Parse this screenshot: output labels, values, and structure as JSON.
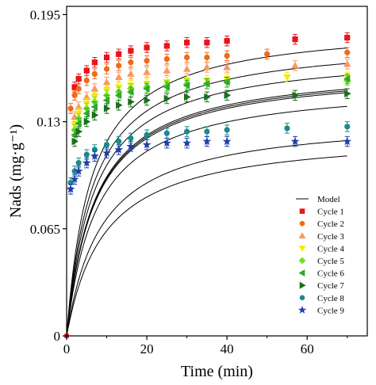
{
  "chart_data": {
    "type": "scatter",
    "xlabel": "Time (min)",
    "ylabel": "Nads (mg·g⁻¹)",
    "xlim": [
      0,
      75
    ],
    "ylim": [
      0,
      0.2
    ],
    "x_ticks": [
      0,
      20,
      40,
      60
    ],
    "y_ticks": [
      {
        "value": 0,
        "label": "0"
      },
      {
        "value": 0.065,
        "label": "0.065"
      },
      {
        "value": 0.13,
        "label": "0.13"
      },
      {
        "value": 0.195,
        "label": "0.195"
      }
    ],
    "grid": false,
    "legend_position": "bottom-right",
    "model_label": "Model",
    "model_color": "#000000",
    "series": [
      {
        "name": "Cycle 1",
        "color": "#e8141c",
        "marker": "square",
        "points": [
          [
            2,
            0.151
          ],
          [
            3,
            0.156
          ],
          [
            5,
            0.161
          ],
          [
            7,
            0.166
          ],
          [
            10,
            0.169
          ],
          [
            13,
            0.171
          ],
          [
            16,
            0.173
          ],
          [
            20,
            0.175
          ],
          [
            25,
            0.176
          ],
          [
            30,
            0.178
          ],
          [
            35,
            0.178
          ],
          [
            40,
            0.179
          ],
          [
            57,
            0.18
          ],
          [
            70,
            0.181
          ]
        ]
      },
      {
        "name": "Cycle 2",
        "color": "#f06a1a",
        "marker": "circle",
        "points": [
          [
            1,
            0.138
          ],
          [
            2,
            0.146
          ],
          [
            3,
            0.15
          ],
          [
            5,
            0.155
          ],
          [
            7,
            0.159
          ],
          [
            10,
            0.162
          ],
          [
            13,
            0.164
          ],
          [
            16,
            0.166
          ],
          [
            20,
            0.167
          ],
          [
            25,
            0.168
          ],
          [
            30,
            0.169
          ],
          [
            35,
            0.169
          ],
          [
            40,
            0.17
          ],
          [
            50,
            0.171
          ],
          [
            70,
            0.172
          ]
        ]
      },
      {
        "name": "Cycle 3",
        "color": "#f79a62",
        "marker": "triangle-up",
        "points": [
          [
            2,
            0.133
          ],
          [
            3,
            0.139
          ],
          [
            5,
            0.145
          ],
          [
            7,
            0.15
          ],
          [
            10,
            0.154
          ],
          [
            13,
            0.157
          ],
          [
            16,
            0.159
          ],
          [
            20,
            0.16
          ],
          [
            25,
            0.161
          ],
          [
            30,
            0.162
          ],
          [
            35,
            0.163
          ],
          [
            40,
            0.163
          ],
          [
            57,
            0.164
          ],
          [
            70,
            0.165
          ]
        ]
      },
      {
        "name": "Cycle 4",
        "color": "#f2ec0c",
        "marker": "triangle-down",
        "points": [
          [
            2,
            0.128
          ],
          [
            3,
            0.135
          ],
          [
            5,
            0.141
          ],
          [
            7,
            0.145
          ],
          [
            10,
            0.149
          ],
          [
            13,
            0.151
          ],
          [
            16,
            0.152
          ],
          [
            20,
            0.153
          ],
          [
            25,
            0.154
          ],
          [
            30,
            0.155
          ],
          [
            35,
            0.155
          ],
          [
            40,
            0.156
          ],
          [
            55,
            0.157
          ],
          [
            70,
            0.157
          ]
        ]
      },
      {
        "name": "Cycle 5",
        "color": "#76e01c",
        "marker": "diamond",
        "points": [
          [
            2,
            0.125
          ],
          [
            3,
            0.132
          ],
          [
            5,
            0.138
          ],
          [
            7,
            0.142
          ],
          [
            10,
            0.146
          ],
          [
            13,
            0.148
          ],
          [
            16,
            0.15
          ],
          [
            20,
            0.151
          ],
          [
            25,
            0.152
          ],
          [
            30,
            0.153
          ],
          [
            35,
            0.153
          ],
          [
            40,
            0.154
          ],
          [
            70,
            0.155
          ]
        ]
      },
      {
        "name": "Cycle 6",
        "color": "#2ea82e",
        "marker": "triangle-left",
        "points": [
          [
            2,
            0.122
          ],
          [
            3,
            0.129
          ],
          [
            5,
            0.135
          ],
          [
            7,
            0.139
          ],
          [
            10,
            0.143
          ],
          [
            13,
            0.146
          ],
          [
            16,
            0.148
          ],
          [
            20,
            0.15
          ],
          [
            25,
            0.151
          ],
          [
            30,
            0.152
          ],
          [
            35,
            0.153
          ],
          [
            40,
            0.154
          ],
          [
            70,
            0.156
          ]
        ]
      },
      {
        "name": "Cycle 7",
        "color": "#1d6e1d",
        "marker": "triangle-right",
        "points": [
          [
            2,
            0.118
          ],
          [
            3,
            0.124
          ],
          [
            5,
            0.13
          ],
          [
            7,
            0.134
          ],
          [
            10,
            0.138
          ],
          [
            13,
            0.14
          ],
          [
            16,
            0.142
          ],
          [
            20,
            0.143
          ],
          [
            25,
            0.144
          ],
          [
            30,
            0.145
          ],
          [
            35,
            0.145
          ],
          [
            40,
            0.146
          ],
          [
            57,
            0.146
          ],
          [
            70,
            0.147
          ]
        ]
      },
      {
        "name": "Cycle 8",
        "color": "#1a8a8c",
        "marker": "circle",
        "points": [
          [
            1,
            0.093
          ],
          [
            2,
            0.1
          ],
          [
            3,
            0.105
          ],
          [
            5,
            0.11
          ],
          [
            7,
            0.113
          ],
          [
            10,
            0.116
          ],
          [
            13,
            0.118
          ],
          [
            16,
            0.12
          ],
          [
            20,
            0.122
          ],
          [
            25,
            0.123
          ],
          [
            30,
            0.124
          ],
          [
            35,
            0.124
          ],
          [
            40,
            0.125
          ],
          [
            55,
            0.126
          ],
          [
            70,
            0.127
          ]
        ]
      },
      {
        "name": "Cycle 9",
        "color": "#1f3fa8",
        "marker": "star",
        "points": [
          [
            1,
            0.089
          ],
          [
            2,
            0.095
          ],
          [
            3,
            0.1
          ],
          [
            5,
            0.105
          ],
          [
            7,
            0.109
          ],
          [
            10,
            0.111
          ],
          [
            13,
            0.113
          ],
          [
            16,
            0.115
          ],
          [
            20,
            0.116
          ],
          [
            25,
            0.117
          ],
          [
            30,
            0.117
          ],
          [
            35,
            0.118
          ],
          [
            40,
            0.118
          ],
          [
            57,
            0.118
          ],
          [
            70,
            0.118
          ]
        ]
      }
    ]
  }
}
